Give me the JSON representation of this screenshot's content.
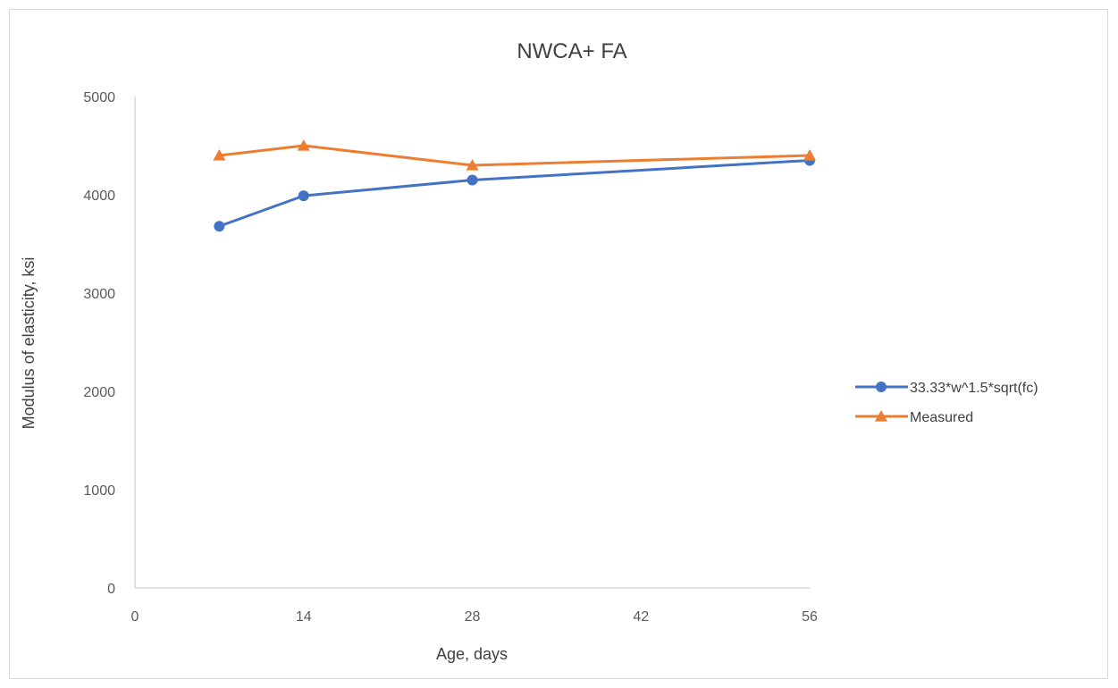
{
  "chart_data": {
    "type": "line",
    "title": "NWCA+ FA",
    "xlabel": "Age, days",
    "ylabel": "Modulus of elasticity, ksi",
    "xlim": [
      0,
      56
    ],
    "ylim": [
      0,
      5000
    ],
    "xticks": [
      0,
      14,
      28,
      42,
      56
    ],
    "yticks": [
      0,
      1000,
      2000,
      3000,
      4000,
      5000
    ],
    "grid": false,
    "legend_position": "right",
    "series": [
      {
        "name": "33.33*w^1.5*sqrt(fc)",
        "color": "#4472c4",
        "marker": "circle",
        "x": [
          7,
          14,
          28,
          56
        ],
        "y": [
          3680,
          3990,
          4150,
          4350
        ]
      },
      {
        "name": "Measured",
        "color": "#ed7d31",
        "marker": "triangle",
        "x": [
          7,
          14,
          28,
          56
        ],
        "y": [
          4400,
          4500,
          4300,
          4400
        ]
      }
    ]
  }
}
